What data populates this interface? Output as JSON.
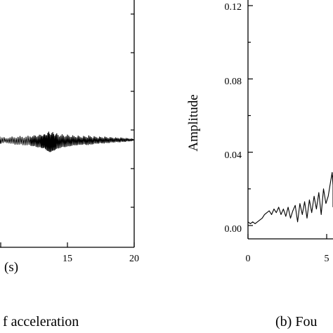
{
  "chart_data": [
    {
      "type": "line",
      "xlabel": "(s)",
      "xlim": [
        0,
        20
      ],
      "xticks": [
        0,
        5,
        10,
        15,
        20
      ],
      "xtick_labels": [
        "",
        "",
        "",
        "15",
        "20"
      ],
      "caption": "f acceleration",
      "series": [
        {
          "x": [
            8.0,
            8.6,
            9.2,
            9.8,
            10.4,
            11.0,
            11.6,
            12.2,
            12.6,
            13.0,
            13.3,
            13.6,
            13.9,
            14.2,
            14.6,
            15.0,
            15.4,
            15.8,
            16.2,
            16.6,
            17.0,
            17.4,
            17.8,
            18.2,
            18.6,
            19.0,
            19.4,
            19.8,
            20.0
          ],
          "y": [
            0.0,
            0.5,
            -0.6,
            0.7,
            -0.5,
            0.8,
            -0.9,
            1.0,
            -1.2,
            1.4,
            -1.5,
            2.2,
            -2.0,
            1.6,
            -1.3,
            1.2,
            -1.0,
            0.9,
            -0.8,
            0.9,
            -0.7,
            0.6,
            -0.6,
            0.5,
            -0.4,
            0.4,
            -0.3,
            0.2,
            0.0
          ]
        }
      ]
    },
    {
      "type": "line",
      "ylabel": "Amplitude",
      "xlim": [
        0,
        6.3
      ],
      "ylim": [
        -0.008,
        0.12
      ],
      "xticks": [
        0,
        5
      ],
      "xtick_labels": [
        "0",
        "5"
      ],
      "yticks": [
        0.0,
        0.04,
        0.08,
        0.12
      ],
      "ytick_labels": [
        "0.00",
        "0.04",
        "0.08",
        "0.12"
      ],
      "caption": "(b) Fou",
      "series": [
        {
          "x": [
            0.0,
            0.15,
            0.3,
            0.45,
            0.6,
            0.75,
            0.9,
            1.05,
            1.2,
            1.35,
            1.5,
            1.65,
            1.8,
            1.95,
            2.1,
            2.25,
            2.4,
            2.55,
            2.7,
            2.85,
            3.0,
            3.15,
            3.3,
            3.45,
            3.6,
            3.75,
            3.9,
            4.05,
            4.2,
            4.35,
            4.5,
            4.65,
            4.8,
            4.95,
            5.1,
            5.25,
            5.35,
            5.45,
            5.55,
            5.65,
            5.75,
            5.85,
            5.95,
            6.05,
            6.15,
            6.3
          ],
          "y": [
            0.002,
            0.001,
            0.002,
            0.001,
            0.002,
            0.003,
            0.004,
            0.006,
            0.007,
            0.008,
            0.006,
            0.009,
            0.007,
            0.01,
            0.006,
            0.009,
            0.005,
            0.01,
            0.004,
            0.008,
            0.011,
            0.002,
            0.012,
            0.006,
            0.013,
            0.004,
            0.014,
            0.007,
            0.016,
            0.009,
            0.018,
            0.006,
            0.02,
            0.012,
            0.016,
            0.024,
            0.029,
            0.022,
            0.027,
            0.018,
            0.024,
            0.014,
            0.02,
            0.012,
            0.016,
            0.01
          ]
        }
      ]
    }
  ]
}
